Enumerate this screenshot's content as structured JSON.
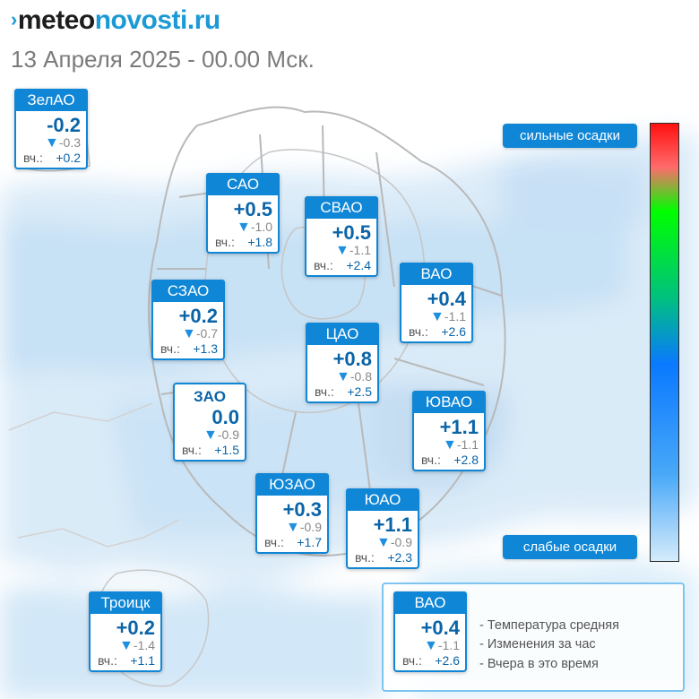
{
  "header": {
    "logo_part1": "meteo",
    "logo_part2": "novosti.ru",
    "subtitle": "13 Апреля 2025 - 00.00 Мск."
  },
  "cards": {
    "zelao": {
      "name": "ЗелАО",
      "temp": "-0.2",
      "change": "-0.3",
      "yesterday_label": "вч.:",
      "yesterday": "+0.2"
    },
    "sao": {
      "name": "САО",
      "temp": "+0.5",
      "change": "-1.0",
      "yesterday_label": "вч.:",
      "yesterday": "+1.8"
    },
    "svao": {
      "name": "СВАО",
      "temp": "+0.5",
      "change": "-1.1",
      "yesterday_label": "вч.:",
      "yesterday": "+2.4"
    },
    "vao": {
      "name": "ВАО",
      "temp": "+0.4",
      "change": "-1.1",
      "yesterday_label": "вч.:",
      "yesterday": "+2.6"
    },
    "szao": {
      "name": "СЗАО",
      "temp": "+0.2",
      "change": "-0.7",
      "yesterday_label": "вч.:",
      "yesterday": "+1.3"
    },
    "cao": {
      "name": "ЦАО",
      "temp": "+0.8",
      "change": "-0.8",
      "yesterday_label": "вч.:",
      "yesterday": "+2.5"
    },
    "zao": {
      "name": "ЗАО",
      "temp": "0.0",
      "change": "-0.9",
      "yesterday_label": "вч.:",
      "yesterday": "+1.5"
    },
    "yuvao": {
      "name": "ЮВАО",
      "temp": "+1.1",
      "change": "-1.1",
      "yesterday_label": "вч.:",
      "yesterday": "+2.8"
    },
    "yuzao": {
      "name": "ЮЗАО",
      "temp": "+0.3",
      "change": "-0.9",
      "yesterday_label": "вч.:",
      "yesterday": "+1.7"
    },
    "yuao": {
      "name": "ЮАО",
      "temp": "+1.1",
      "change": "-0.9",
      "yesterday_label": "вч.:",
      "yesterday": "+2.3"
    },
    "troitsk": {
      "name": "Троицк",
      "temp": "+0.2",
      "change": "-1.4",
      "yesterday_label": "вч.:",
      "yesterday": "+1.1"
    }
  },
  "legend": {
    "top_label": "сильные осадки",
    "bottom_label": "слабые осадки",
    "gradient_colors": [
      "#ff1010",
      "#ff6b6b",
      "#00ff00",
      "#00c080",
      "#0a79ff",
      "#48a8f8",
      "#d5ebfb"
    ],
    "example": {
      "name": "ВАО",
      "temp": "+0.4",
      "change": "-1.1",
      "yesterday_label": "вч.:",
      "yesterday": "+2.6"
    },
    "key": {
      "temp": "- Температура средняя",
      "change": "- Изменения за час",
      "yesterday": "- Вчера в это время"
    }
  },
  "colors": {
    "accent": "#0f86d6",
    "temperature_text": "#0a64a8",
    "change_arrow": "#1e8fe0",
    "precip_light": "#d6e9f8",
    "precip_medium": "#bddcf3",
    "boundaries": "#b9b9b9"
  },
  "icons": {
    "change_indicator": "down-triangle-icon"
  }
}
